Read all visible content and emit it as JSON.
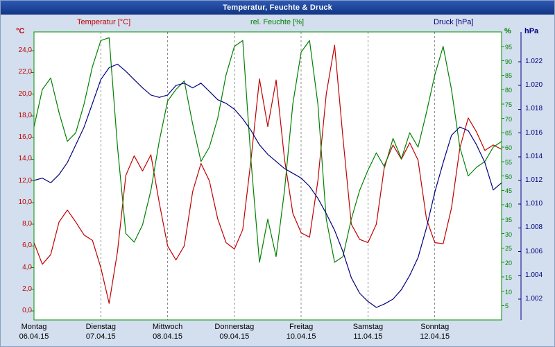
{
  "window": {
    "title": "Temperatur, Feuchte & Druck"
  },
  "legend": {
    "temperature": "Temperatur [°C]",
    "humidity": "rel. Feuchte [%]",
    "pressure": "Druck [hPa]"
  },
  "axes": {
    "left_unit": "°C",
    "right_inner_unit": "%",
    "right_outer_unit": "hPa",
    "temp_ticks": [
      "24,0",
      "22,0",
      "20,0",
      "18,0",
      "16,0",
      "14,0",
      "12,0",
      "10,0",
      "8,0",
      "6,0",
      "4,0",
      "2,0",
      "0,0"
    ],
    "humidity_ticks": [
      "95",
      "90",
      "85",
      "80",
      "75",
      "70",
      "65",
      "60",
      "55",
      "50",
      "45",
      "40",
      "35",
      "30",
      "25",
      "20",
      "15",
      "10",
      "5"
    ],
    "pressure_ticks": [
      "1.022",
      "1.020",
      "1.018",
      "1.016",
      "1.014",
      "1.012",
      "1.010",
      "1.008",
      "1.006",
      "1.004",
      "1.002"
    ],
    "days": [
      {
        "name": "Montag",
        "date": "06.04.15"
      },
      {
        "name": "Dienstag",
        "date": "07.04.15"
      },
      {
        "name": "Mittwoch",
        "date": "08.04.15"
      },
      {
        "name": "Donnerstag",
        "date": "09.04.15"
      },
      {
        "name": "Freitag",
        "date": "10.04.15"
      },
      {
        "name": "Samstag",
        "date": "11.04.15"
      },
      {
        "name": "Sonntag",
        "date": "12.04.15"
      }
    ]
  },
  "colors": {
    "temperature": "#c00000",
    "humidity": "#008000",
    "pressure": "#000080",
    "titlebar_text": "#ffffff",
    "plot_border": "#009000",
    "gridline": "#8c8c8c",
    "day_label": "#000000",
    "background": "#d3dfee",
    "plot_background": "#ffffff"
  },
  "chart_data": {
    "type": "line",
    "title": "Temperatur, Feuchte & Druck",
    "x_days": [
      "Montag 06.04.15",
      "Dienstag 07.04.15",
      "Mittwoch 08.04.15",
      "Donnerstag 09.04.15",
      "Freitag 10.04.15",
      "Samstag 11.04.15",
      "Sonntag 12.04.15"
    ],
    "x_step_hours": 3,
    "legend_position": "top",
    "grid": "vertical dashed lines at day boundaries only",
    "y_axes": {
      "temperature": {
        "unit": "°C",
        "min": 0,
        "max": 24,
        "tick_step": 2
      },
      "humidity": {
        "unit": "%",
        "min": 0,
        "max": 100,
        "tick_step": 5
      },
      "pressure": {
        "unit": "hPa",
        "min": 1.002,
        "max": 1.022,
        "tick_step": 0.002
      }
    },
    "series": [
      {
        "name": "Temperatur [°C]",
        "axis": "temperature",
        "color": "#c00000",
        "values": [
          6.3,
          4.3,
          5.2,
          8.2,
          9.3,
          8.2,
          7.0,
          6.5,
          4.0,
          0.7,
          5.5,
          12.5,
          14.3,
          12.9,
          14.4,
          10.0,
          6.0,
          4.7,
          6.0,
          11.0,
          13.6,
          12.0,
          8.5,
          6.3,
          5.7,
          7.5,
          14.0,
          21.4,
          17.0,
          21.3,
          14.0,
          9.0,
          7.2,
          6.8,
          12.0,
          20.0,
          24.5,
          16.0,
          8.0,
          6.6,
          6.3,
          8.0,
          13.5,
          15.3,
          14.0,
          15.5,
          13.9,
          8.5,
          6.3,
          6.2,
          9.5,
          15.0,
          17.8,
          16.5,
          14.8,
          15.3,
          14.9
        ]
      },
      {
        "name": "rel. Feuchte [%]",
        "axis": "humidity",
        "color": "#008000",
        "values": [
          67,
          80,
          84,
          72,
          62,
          65,
          75,
          88,
          97,
          98,
          60,
          30,
          27,
          33,
          45,
          62,
          76,
          80,
          83,
          68,
          55,
          60,
          70,
          85,
          95,
          97,
          55,
          20,
          35,
          22,
          45,
          75,
          93,
          97,
          75,
          35,
          20,
          22,
          35,
          45,
          52,
          58,
          53,
          63,
          56,
          65,
          60,
          72,
          85,
          95,
          80,
          60,
          50,
          53,
          55,
          60,
          62
        ]
      },
      {
        "name": "Druck [hPa]",
        "axis": "pressure",
        "color": "#000080",
        "values": [
          1.012,
          1.0122,
          1.0118,
          1.0125,
          1.0135,
          1.015,
          1.0165,
          1.0185,
          1.0205,
          1.0215,
          1.0218,
          1.0212,
          1.0205,
          1.0198,
          1.0192,
          1.019,
          1.0192,
          1.02,
          1.0202,
          1.0198,
          1.0202,
          1.0195,
          1.0188,
          1.0185,
          1.018,
          1.0172,
          1.0162,
          1.015,
          1.0142,
          1.0136,
          1.013,
          1.0126,
          1.0122,
          1.0115,
          1.0105,
          1.0092,
          1.0078,
          1.006,
          1.0038,
          1.0025,
          1.0018,
          1.0013,
          1.0016,
          1.002,
          1.0028,
          1.004,
          1.0055,
          1.008,
          1.011,
          1.0135,
          1.0158,
          1.0165,
          1.0162,
          1.015,
          1.0135,
          1.0112,
          1.0118
        ]
      }
    ]
  }
}
